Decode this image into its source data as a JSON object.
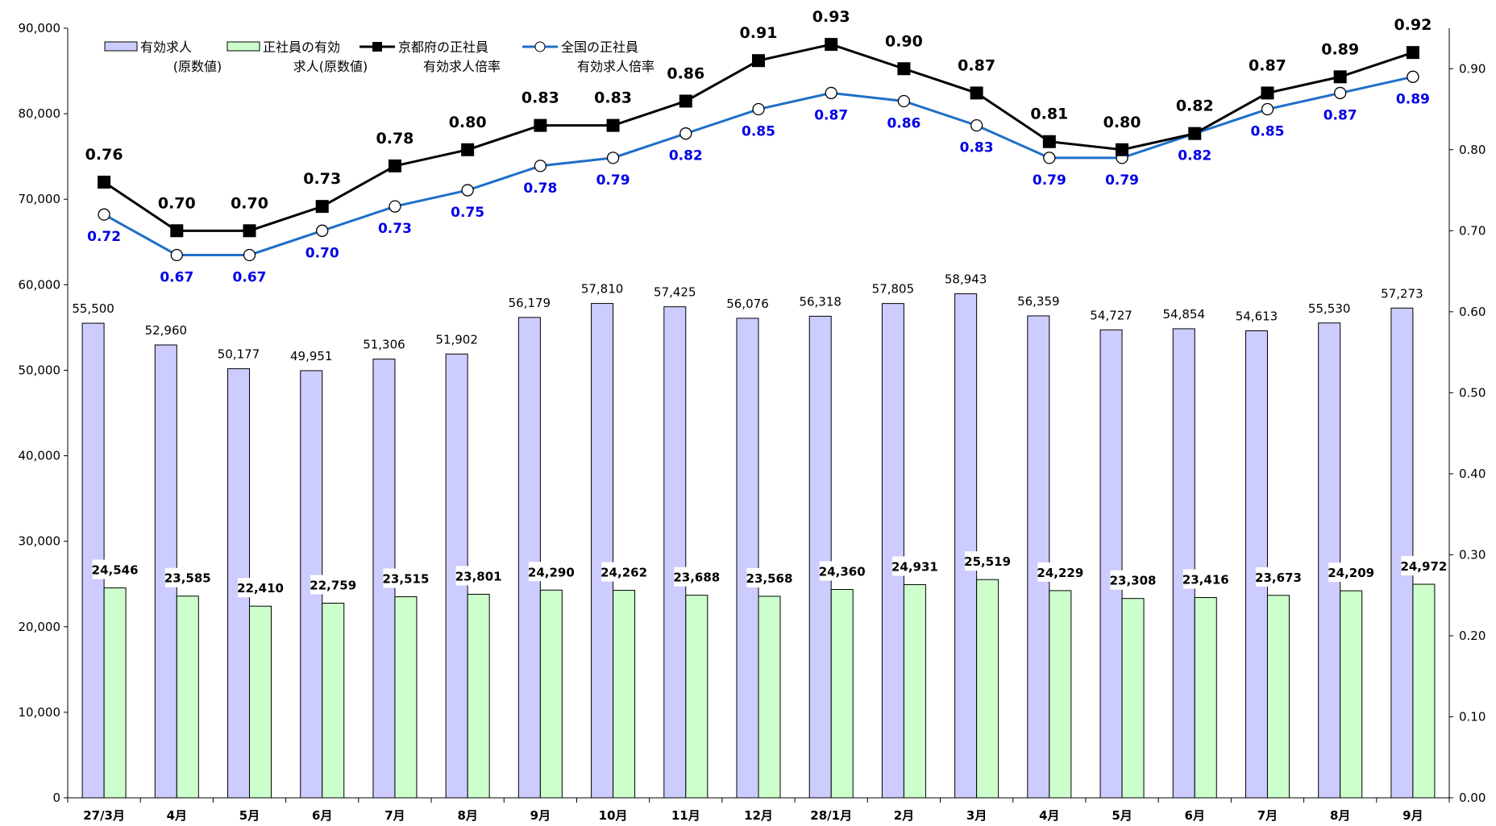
{
  "chart_data": {
    "type": "bar",
    "categories": [
      "27/3月",
      "4月",
      "5月",
      "6月",
      "7月",
      "8月",
      "9月",
      "10月",
      "11月",
      "12月",
      "28/1月",
      "2月",
      "3月",
      "4月",
      "5月",
      "6月",
      "7月",
      "8月",
      "9月"
    ],
    "y_left": {
      "ylim": [
        0,
        90000
      ],
      "ticks": [
        "0",
        "10,000",
        "20,000",
        "30,000",
        "40,000",
        "50,000",
        "60,000",
        "70,000",
        "80,000",
        "90,000"
      ]
    },
    "y_right": {
      "ylim": [
        0,
        0.95
      ],
      "ticks": [
        "0.00",
        "0.10",
        "0.20",
        "0.30",
        "0.40",
        "0.50",
        "0.60",
        "0.70",
        "0.80",
        "0.90"
      ]
    },
    "grid": false,
    "legend_position": "top-left",
    "series": [
      {
        "name": "有効求人\n(原数値)",
        "kind": "bar",
        "axis": "left",
        "color": "#ccccff",
        "values": [
          55500,
          52960,
          50177,
          49951,
          51306,
          51902,
          56179,
          57810,
          57425,
          56076,
          56318,
          57805,
          58943,
          56359,
          54727,
          54854,
          54613,
          55530,
          57273
        ],
        "labels": [
          "55,500",
          "52,960",
          "50,177",
          "49,951",
          "51,306",
          "51,902",
          "56,179",
          "57,810",
          "57,425",
          "56,076",
          "56,318",
          "57,805",
          "58,943",
          "56,359",
          "54,727",
          "54,854",
          "54,613",
          "55,530",
          "57,273"
        ]
      },
      {
        "name": "正社員の有効\n求人(原数値)",
        "kind": "bar",
        "axis": "left",
        "color": "#ccffcc",
        "values": [
          24546,
          23585,
          22410,
          22759,
          23515,
          23801,
          24290,
          24262,
          23688,
          23568,
          24360,
          24931,
          25519,
          24229,
          23308,
          23416,
          23673,
          24209,
          24972
        ],
        "labels": [
          "24,546",
          "23,585",
          "22,410",
          "22,759",
          "23,515",
          "23,801",
          "24,290",
          "24,262",
          "23,688",
          "23,568",
          "24,360",
          "24,931",
          "25,519",
          "24,229",
          "23,308",
          "23,416",
          "23,673",
          "24,209",
          "24,972"
        ]
      },
      {
        "name": "京都府の正社員\n有効求人倍率",
        "kind": "line",
        "axis": "right",
        "color": "#000000",
        "marker": "square",
        "values": [
          0.76,
          0.7,
          0.7,
          0.73,
          0.78,
          0.8,
          0.83,
          0.83,
          0.86,
          0.91,
          0.93,
          0.9,
          0.87,
          0.81,
          0.8,
          0.82,
          0.87,
          0.89,
          0.92
        ],
        "labels": [
          "0.76",
          "0.70",
          "0.70",
          "0.73",
          "0.78",
          "0.80",
          "0.83",
          "0.83",
          "0.86",
          "0.91",
          "0.93",
          "0.90",
          "0.87",
          "0.81",
          "0.80",
          "0.82",
          "0.87",
          "0.89",
          "0.92"
        ]
      },
      {
        "name": "全国の正社員\n有効求人倍率",
        "kind": "line",
        "axis": "right",
        "color": "#1f6fc8",
        "marker": "circle",
        "values": [
          0.72,
          0.67,
          0.67,
          0.7,
          0.73,
          0.75,
          0.78,
          0.79,
          0.82,
          0.85,
          0.87,
          0.86,
          0.83,
          0.79,
          0.79,
          0.82,
          0.85,
          0.87,
          0.89
        ],
        "labels": [
          "0.72",
          "0.67",
          "0.67",
          "0.70",
          "0.73",
          "0.75",
          "0.78",
          "0.79",
          "0.82",
          "0.85",
          "0.87",
          "0.86",
          "0.83",
          "0.79",
          "0.79",
          "0.82",
          "0.85",
          "0.87",
          "0.89"
        ]
      }
    ]
  }
}
